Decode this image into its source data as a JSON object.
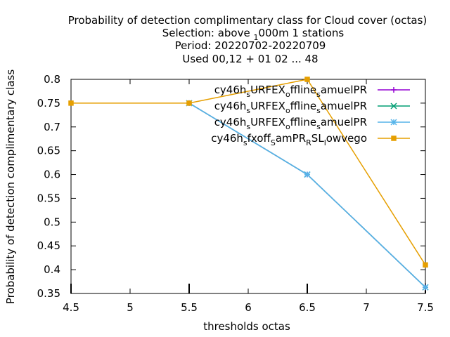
{
  "chart_data": {
    "type": "line",
    "title_lines": [
      "Probability of detection complimentary class  for Cloud cover (octas)",
      "Selection: above 1000m      1 stations",
      "Period: 20220702-20220709",
      "Used  00,12  + 01 02 ... 48"
    ],
    "xlabel": "thresholds octas",
    "ylabel": "Probability of detection complimentary class",
    "xlim": [
      4.5,
      7.5
    ],
    "ylim": [
      0.35,
      0.8
    ],
    "xticks": [
      "4.5",
      "5",
      "5.5",
      "6",
      "6.5",
      "7",
      "7.5"
    ],
    "yticks": [
      "0.35",
      "0.4",
      "0.45",
      "0.5",
      "0.55",
      "0.6",
      "0.65",
      "0.7",
      "0.75",
      "0.8"
    ],
    "grid": false,
    "legend_position": "top-right",
    "series": [
      {
        "name": "cy46h_sURFEX_offline_samuelPR",
        "color": "#9400d3",
        "marker": "plus",
        "x": [
          5.5,
          6.5,
          7.5
        ],
        "y": [
          0.75,
          0.6,
          0.363
        ]
      },
      {
        "name": "cy46h_sURFEX_offline_samuelPR",
        "color": "#009e73",
        "marker": "cross",
        "x": [
          5.5,
          6.5,
          7.5
        ],
        "y": [
          0.75,
          0.6,
          0.363
        ]
      },
      {
        "name": "cy46h_sURFEX_offline_samuelPR",
        "color": "#56b4e9",
        "marker": "star",
        "x": [
          5.5,
          6.5,
          7.5
        ],
        "y": [
          0.75,
          0.6,
          0.363
        ]
      },
      {
        "name": "cy46h_sfxoff_samPR_RSL_lowvego",
        "color": "#e69f00",
        "marker": "box",
        "x": [
          4.5,
          5.5,
          6.5,
          7.5
        ],
        "y": [
          0.75,
          0.75,
          0.8,
          0.41
        ]
      }
    ],
    "legend_labels": [
      {
        "a": "cy46h",
        "b": "s",
        "c": "URFEX",
        "d": "o",
        "e": "ffline",
        "f": "s",
        "g": "amuelPR"
      },
      {
        "a": "cy46h",
        "b": "s",
        "c": "URFEX",
        "d": "o",
        "e": "ffline",
        "f": "s",
        "g": "amuelPR"
      },
      {
        "a": "cy46h",
        "b": "s",
        "c": "URFEX",
        "d": "o",
        "e": "ffline",
        "f": "s",
        "g": "amuelPR"
      },
      {
        "a": "cy46h",
        "b": "s",
        "c": "fxoff",
        "d": "S",
        "e": "amPR",
        "f": "R",
        "g": "SL",
        "h": "l",
        "i": "owvego"
      }
    ]
  }
}
